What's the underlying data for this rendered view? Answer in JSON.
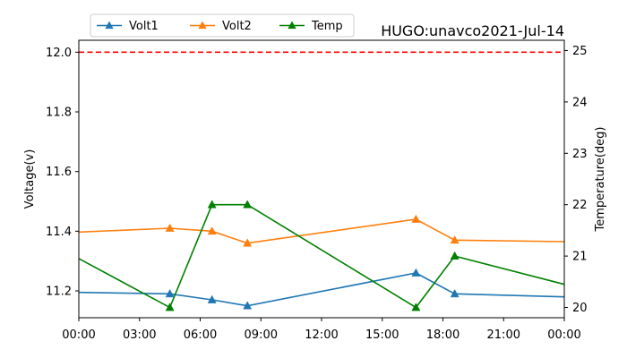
{
  "chart_data": {
    "type": "line",
    "title": "HUGO:unavco2021-Jul-14",
    "ylabel": "Voltage(v)",
    "y2label": "Temperature(deg)",
    "xlabel": "",
    "xlim": [
      "00:00",
      "24:00"
    ],
    "xticks": [
      "00:00",
      "03:00",
      "06:00",
      "09:00",
      "12:00",
      "15:00",
      "18:00",
      "21:00",
      "00:00"
    ],
    "ylim": [
      11.11,
      12.04
    ],
    "yticks": [
      "11.2",
      "11.4",
      "11.6",
      "11.8",
      "12.0"
    ],
    "y2lim": [
      19.8,
      25.2
    ],
    "y2ticks": [
      "20",
      "21",
      "22",
      "23",
      "24",
      "25"
    ],
    "legend_position": "top-left",
    "grid": false,
    "reference_line": {
      "axis": "left",
      "value": 12.0,
      "style": "dashed",
      "color": "#ff0000"
    },
    "series": [
      {
        "name": "Volt1",
        "axis": "left",
        "color": "#1f77b4",
        "points": [
          {
            "x": "00:00",
            "y": 11.195
          },
          {
            "x": "04:30",
            "y": 11.19,
            "marker": true
          },
          {
            "x": "06:35",
            "y": 11.17,
            "marker": true
          },
          {
            "x": "08:20",
            "y": 11.15,
            "marker": true
          },
          {
            "x": "16:40",
            "y": 11.26,
            "marker": true
          },
          {
            "x": "18:35",
            "y": 11.19,
            "marker": true
          },
          {
            "x": "24:00",
            "y": 11.18
          }
        ]
      },
      {
        "name": "Volt2",
        "axis": "left",
        "color": "#ff7f0e",
        "points": [
          {
            "x": "00:00",
            "y": 11.397
          },
          {
            "x": "04:30",
            "y": 11.41,
            "marker": true
          },
          {
            "x": "06:35",
            "y": 11.4,
            "marker": true
          },
          {
            "x": "08:20",
            "y": 11.36,
            "marker": true
          },
          {
            "x": "16:40",
            "y": 11.44,
            "marker": true
          },
          {
            "x": "18:35",
            "y": 11.37,
            "marker": true
          },
          {
            "x": "24:00",
            "y": 11.365
          }
        ]
      },
      {
        "name": "Temp",
        "axis": "right",
        "color": "#008000",
        "points": [
          {
            "x": "00:00",
            "y": 20.95
          },
          {
            "x": "04:30",
            "y": 20.0,
            "marker": true
          },
          {
            "x": "06:35",
            "y": 22.0,
            "marker": true
          },
          {
            "x": "08:20",
            "y": 22.0,
            "marker": true
          },
          {
            "x": "16:40",
            "y": 20.0,
            "marker": true
          },
          {
            "x": "18:35",
            "y": 21.0,
            "marker": true
          },
          {
            "x": "24:00",
            "y": 20.45
          }
        ]
      }
    ]
  }
}
